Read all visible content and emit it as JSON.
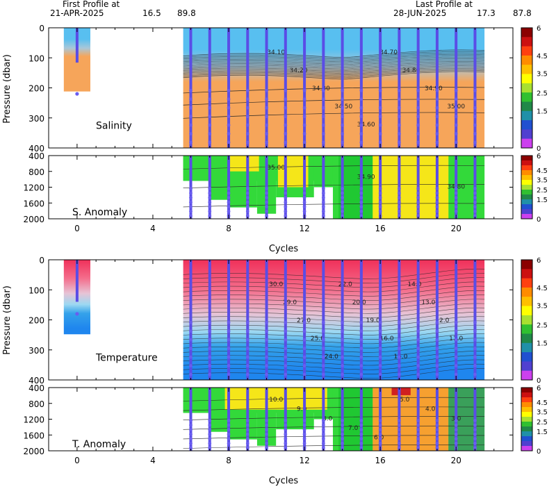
{
  "header": {
    "first_label": "First Profile at",
    "first_date": "21-APR-2025",
    "first_lat": "16.5",
    "first_lon": "89.8",
    "last_label": "Last Profile at",
    "last_date": "28-JUN-2025",
    "last_lat": "17.3",
    "last_lon": "87.8"
  },
  "chart_data": [
    {
      "type": "heatmap",
      "panel": "Salinity",
      "label": "Salinity",
      "ylabel": "Pressure (dbar)",
      "ylim": [
        400,
        0
      ],
      "yticks": [
        "0",
        "100",
        "200",
        "300",
        "400"
      ],
      "xlim": [
        -1.5,
        23
      ],
      "profile_cycles": [
        0,
        6,
        7,
        8,
        9,
        10,
        11,
        12,
        13,
        14,
        15,
        16,
        17,
        18,
        19,
        20,
        21
      ],
      "contour_labels": [
        "34.10",
        "34.20",
        "34.30",
        "34.50",
        "34.60",
        "34.70",
        "34.80",
        "34.90",
        "35.00"
      ]
    },
    {
      "type": "heatmap",
      "panel": "S. Anomaly",
      "label": "S. Anomaly",
      "ylim": [
        2000,
        400
      ],
      "yticks": [
        "400",
        "800",
        "1200",
        "1600",
        "2000"
      ],
      "contour_labels": [
        "35.00",
        "34.90",
        "34.80"
      ]
    },
    {
      "type": "heatmap",
      "panel": "Temperature",
      "label": "Temperature",
      "ylabel": "Pressure (dbar)",
      "ylim": [
        400,
        0
      ],
      "yticks": [
        "0",
        "100",
        "200",
        "300",
        "400"
      ],
      "contour_labels": [
        "30.0",
        "29.0",
        "27.0",
        "25.0",
        "24.0",
        "22.0",
        "20.0",
        "19.0",
        "16.0",
        "15.0",
        "14.0",
        "13.0",
        "12.0",
        "11.0"
      ]
    },
    {
      "type": "heatmap",
      "panel": "T. Anomaly",
      "label": "T. Anomaly",
      "ylim": [
        2000,
        400
      ],
      "yticks": [
        "400",
        "800",
        "1200",
        "1600",
        "2000"
      ],
      "contour_labels": [
        "10.0",
        "9.0",
        "8.0",
        "7.0",
        "6.0",
        "5.0",
        "4.0",
        "3.0"
      ]
    }
  ],
  "xaxis": {
    "label": "Cycles",
    "ticks": [
      "0",
      "4",
      "8",
      "12",
      "16",
      "20"
    ]
  },
  "colorbar": {
    "ticks": [
      "6",
      "4.5",
      "3.5",
      "2.5",
      "1.5",
      "0"
    ],
    "colors": [
      "#8b0000",
      "#cc1010",
      "#ff4010",
      "#ff8c00",
      "#ffc000",
      "#ffff00",
      "#a8e030",
      "#30c030",
      "#208848",
      "#2090a8",
      "#2050d0",
      "#5040d0",
      "#cc40ee"
    ]
  },
  "colors": {
    "profile_line": "#5a4de6",
    "profile_dot": "#6a5df0",
    "salinity_fresh": "#58bff0",
    "salinity_salty": "#f6a55a",
    "anom_green": "#33d93a",
    "anom_yellow": "#f5e619",
    "anom_orange": "#f6a030",
    "temp_warm": "#f0305a",
    "temp_mid": "#9cd8f2",
    "temp_cool": "#34a2ea",
    "temp_deep": "#1f86ee"
  }
}
